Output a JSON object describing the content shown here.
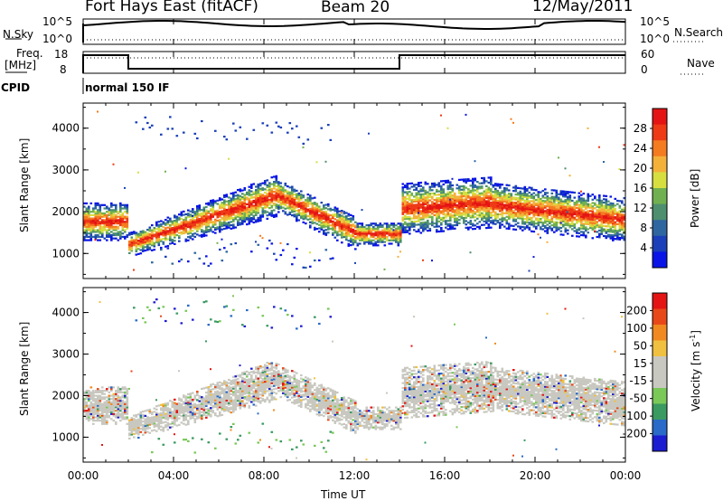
{
  "header": {
    "station": "Fort Hays East (fitACF)",
    "beam": "Beam 20",
    "date": "12/May/2011"
  },
  "top_panel": {
    "left_label": "N.Sky",
    "left_ticks": [
      "10^5",
      "10^0"
    ],
    "right_ticks": [
      "10^5",
      "10^0"
    ],
    "right_label": "N.Search"
  },
  "freq_panel": {
    "left_label": "Freq.",
    "unit": "[MHz]",
    "left_ticks": [
      "18",
      "8"
    ],
    "right_ticks": [
      "60",
      "0"
    ],
    "right_label": "Nave"
  },
  "cpid": {
    "label": "CPID",
    "value": "normal 150 IF"
  },
  "colors": {
    "power_scale": [
      "#0a14e6",
      "#1a3fb8",
      "#2e66a0",
      "#4d8f6e",
      "#70b050",
      "#d7df40",
      "#f4b13a",
      "#f47b20",
      "#ee3a16",
      "#e41414"
    ],
    "velocity_scale": [
      "#1c1cd0",
      "#2a6ac8",
      "#3a9a60",
      "#7ac858",
      "#c8c8c0",
      "#c8c8c0",
      "#f0c040",
      "#f08a20",
      "#e84818",
      "#e41414"
    ]
  },
  "chart_data": [
    {
      "type": "heatmap",
      "name": "power",
      "ylabel": "Slant Range [km]",
      "xlabel": "Time UT",
      "ylim": [
        400,
        4600
      ],
      "yticks": [
        "1000",
        "2000",
        "3000",
        "4000"
      ],
      "xticks": [
        "00:00",
        "04:00",
        "08:00",
        "12:00",
        "16:00",
        "20:00",
        "00:00"
      ],
      "colorbar": {
        "title": "Power [dB]",
        "ticks": [
          "28",
          "24",
          "20",
          "16",
          "12",
          "8",
          "4"
        ],
        "range": [
          0,
          30
        ]
      }
    },
    {
      "type": "heatmap",
      "name": "velocity",
      "ylabel": "Slant Range [km]",
      "xlabel": "Time UT",
      "ylim": [
        400,
        4600
      ],
      "yticks": [
        "1000",
        "2000",
        "3000",
        "4000"
      ],
      "xticks": [
        "00:00",
        "04:00",
        "08:00",
        "12:00",
        "16:00",
        "20:00",
        "00:00"
      ],
      "colorbar": {
        "title": "Velocity [m s",
        "title_sup": "-1",
        "title_end": "]",
        "ticks": [
          "200",
          "100",
          "50",
          "15",
          "-15",
          "-50",
          "-100",
          "-200"
        ],
        "range": [
          -250,
          250
        ]
      }
    }
  ]
}
